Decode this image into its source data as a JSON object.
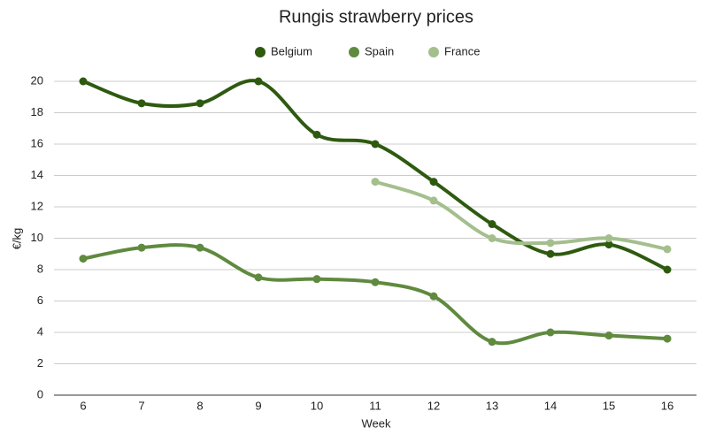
{
  "chart_data": {
    "type": "line",
    "title": "Rungis strawberry prices",
    "x_label": "Week",
    "y_label": "€/kg",
    "categories": [
      "6",
      "7",
      "8",
      "9",
      "10",
      "11",
      "12",
      "13",
      "14",
      "15",
      "16"
    ],
    "series": [
      {
        "name": "Belgium",
        "color": "#2e5a10",
        "values": [
          20,
          18.6,
          18.6,
          20,
          16.6,
          16,
          13.6,
          10.9,
          9,
          9.6,
          8
        ]
      },
      {
        "name": "Spain",
        "color": "#5f8a3f",
        "values": [
          8.7,
          9.4,
          9.4,
          7.5,
          7.4,
          7.2,
          6.3,
          3.4,
          4,
          3.8,
          3.6
        ]
      },
      {
        "name": "France",
        "color": "#a4bf8d",
        "values": [
          null,
          null,
          null,
          null,
          null,
          13.6,
          12.4,
          10,
          9.7,
          10,
          9.3
        ]
      }
    ],
    "ylim": [
      0,
      20
    ],
    "yticks": [
      0,
      2,
      4,
      6,
      8,
      10,
      12,
      14,
      16,
      18,
      20
    ],
    "grid": true,
    "legend": "top",
    "smooth": true
  }
}
